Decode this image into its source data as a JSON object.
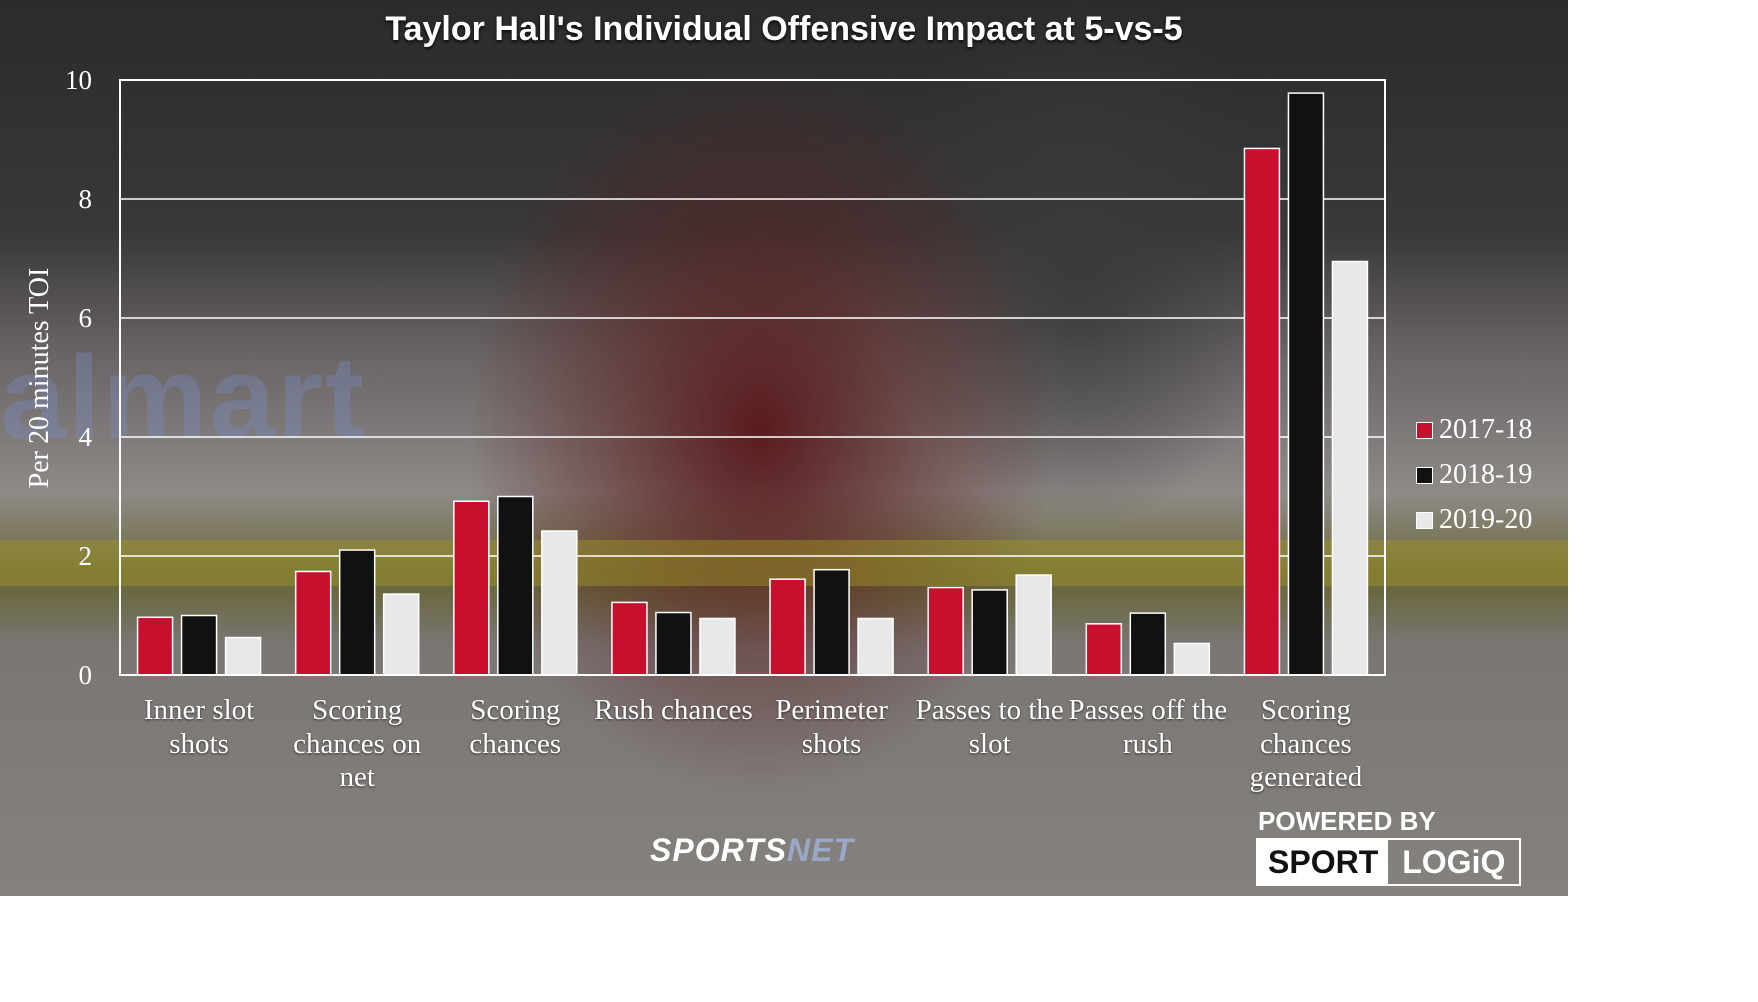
{
  "chart_data": {
    "type": "bar",
    "title": "Taylor Hall's Individual Offensive Impact at 5-vs-5",
    "ylabel": "Per 20 minutes TOI",
    "xlabel": "",
    "ylim": [
      0,
      10
    ],
    "yticks": [
      0,
      2,
      4,
      6,
      8,
      10
    ],
    "grid": true,
    "legend_position": "right",
    "categories": [
      "Inner slot shots",
      "Scoring chances on net",
      "Scoring chances",
      "Rush chances",
      "Perimeter shots",
      "Passes to the slot",
      "Passes off the rush",
      "Scoring chances generated"
    ],
    "series": [
      {
        "name": "2017-18",
        "color": "#c8102e",
        "values": [
          0.97,
          1.74,
          2.92,
          1.22,
          1.61,
          1.47,
          0.86,
          8.85
        ]
      },
      {
        "name": "2018-19",
        "color": "#111111",
        "values": [
          1.0,
          2.1,
          3.0,
          1.05,
          1.77,
          1.43,
          1.04,
          9.78
        ]
      },
      {
        "name": "2019-20",
        "color": "#e8e8e8",
        "values": [
          0.63,
          1.36,
          2.42,
          0.95,
          0.95,
          1.68,
          0.53,
          6.95
        ]
      }
    ]
  },
  "branding": {
    "sportsnet_main": "SPORTS",
    "sportsnet_accent": "NET",
    "powered_by": "POWERED BY",
    "sportlogiq_a": "SPORT",
    "sportlogiq_b": "LOGiQ"
  },
  "background": {
    "watermark_text": "almart"
  }
}
